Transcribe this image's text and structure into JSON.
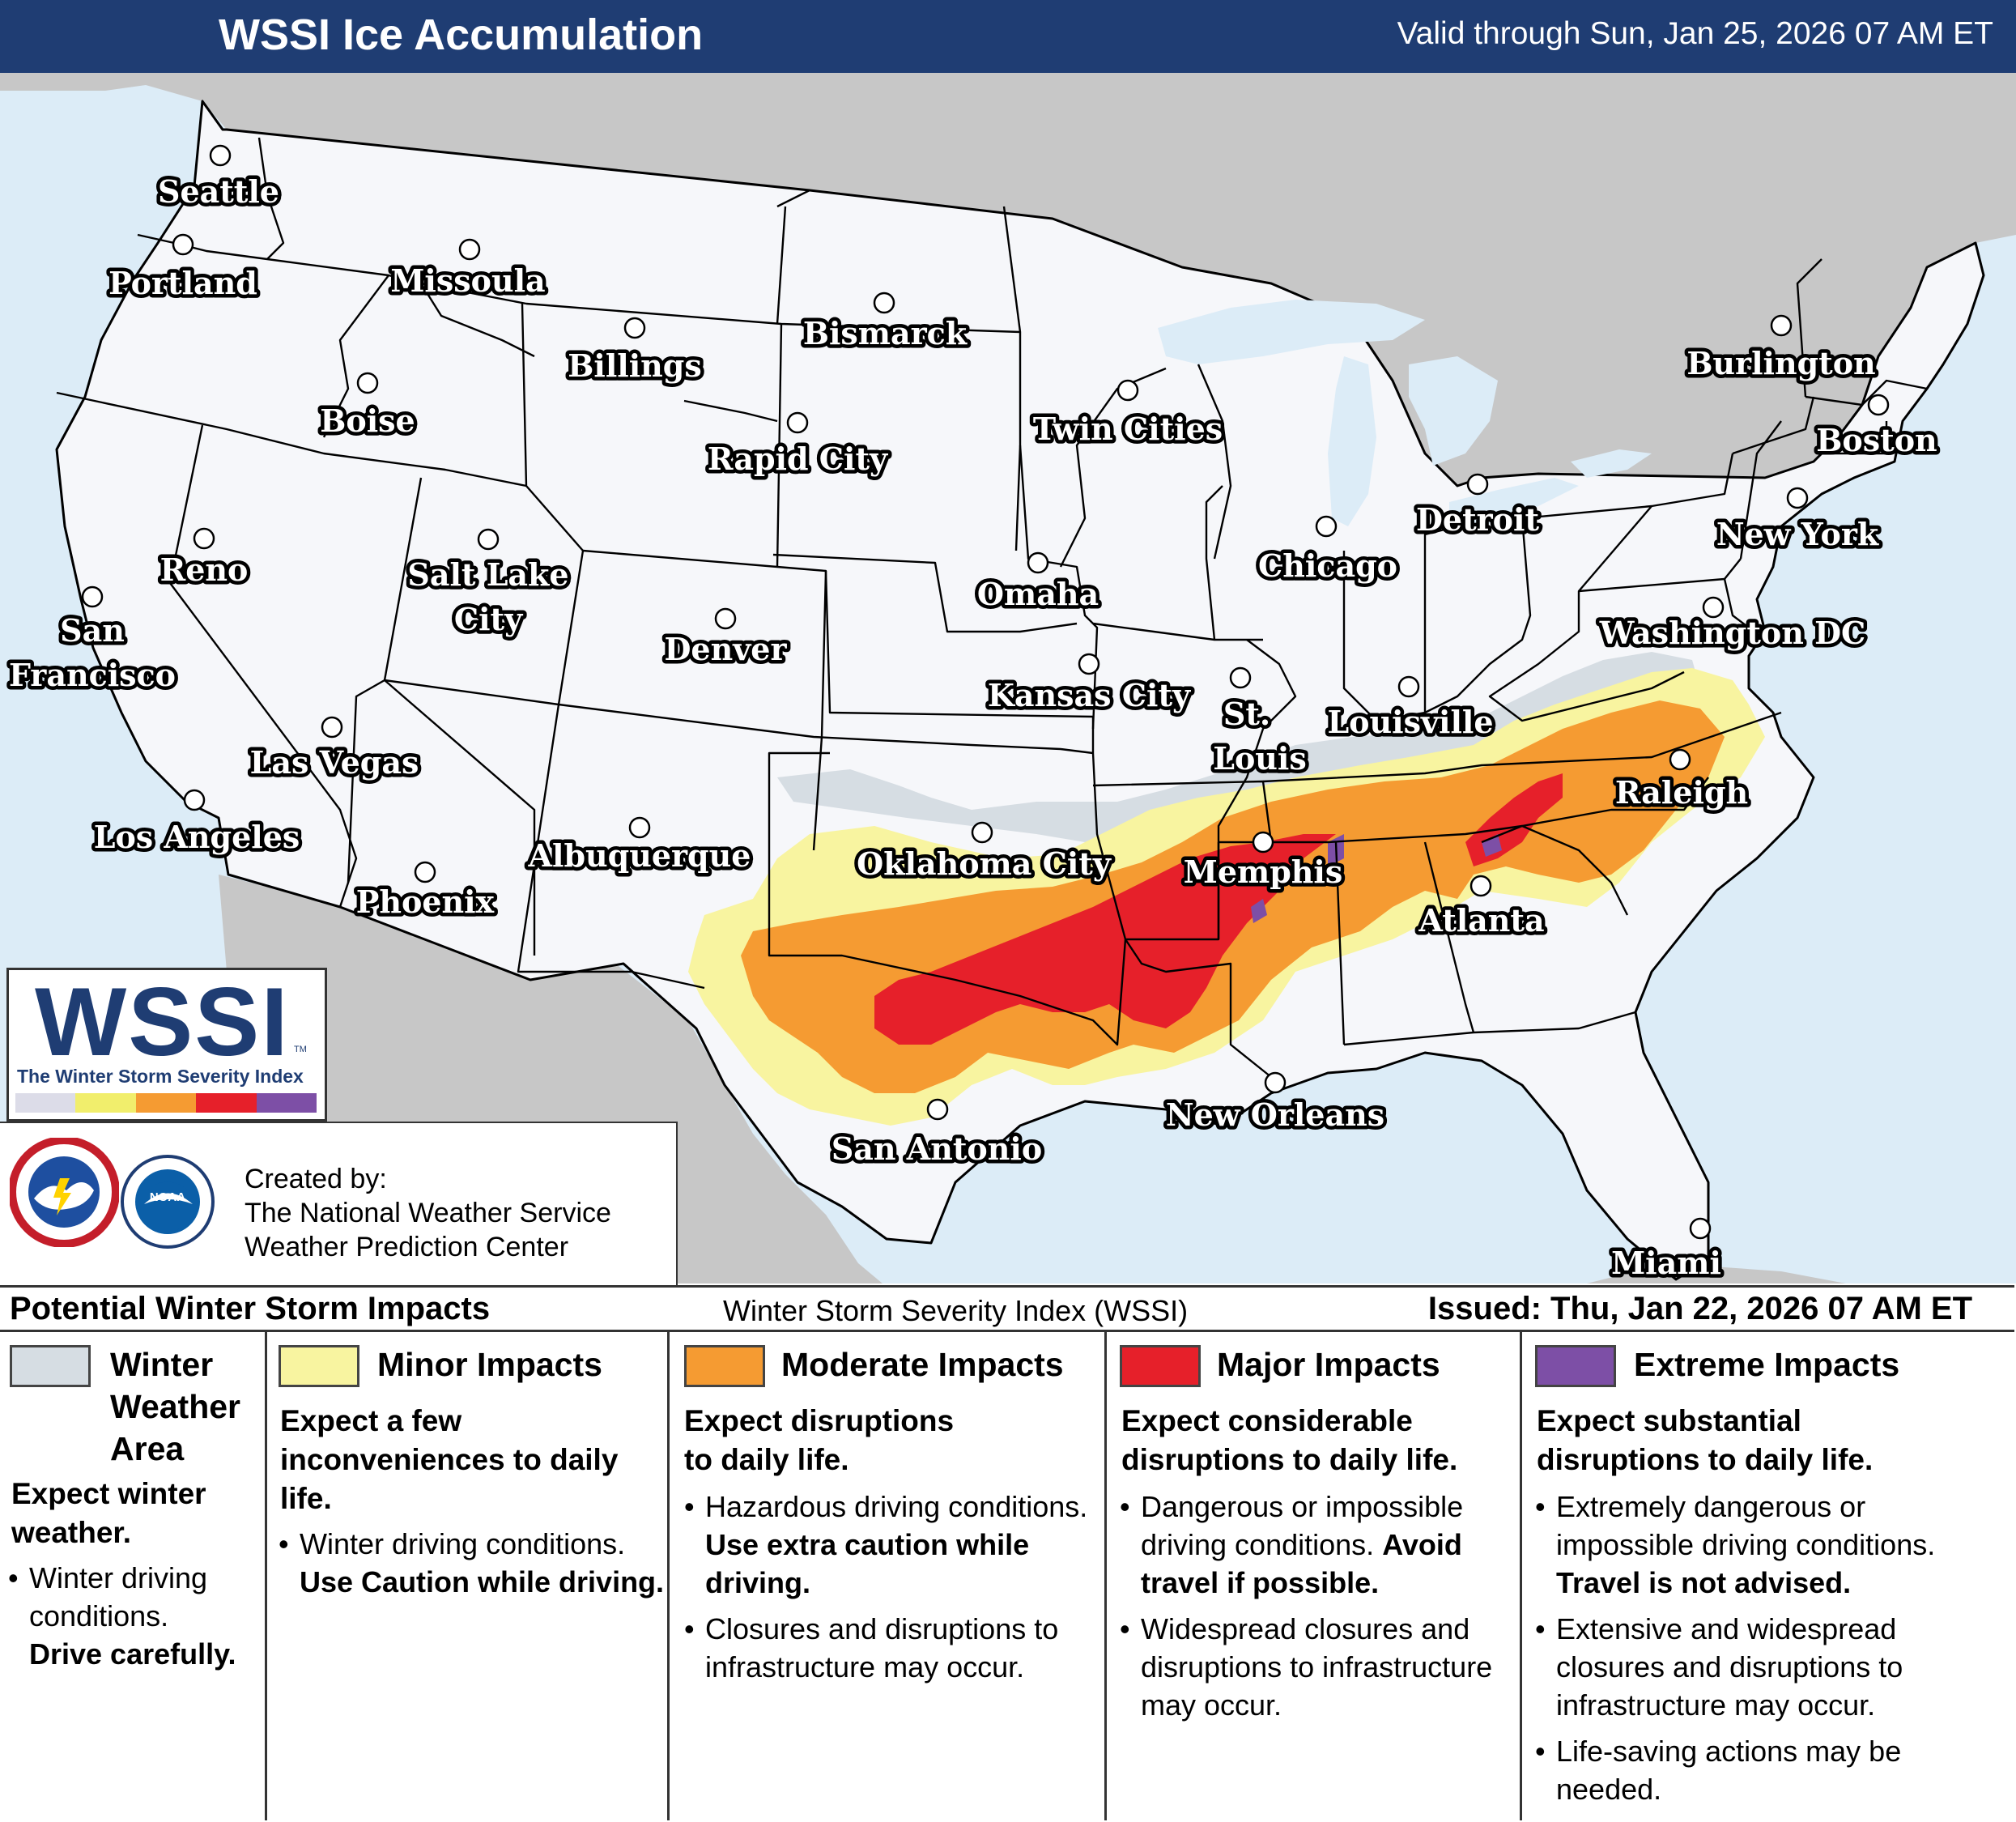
{
  "header": {
    "title": "WSSI Ice Accumulation",
    "valid": "Valid through Sun, Jan 25, 2026 07 AM ET"
  },
  "colors": {
    "header_bg": "#1f3d73",
    "water": "#dcecf7",
    "land_outside": "#c7c7c7",
    "land_conus": "#f6f7fa",
    "winter_weather_area": "#d6dde3",
    "minor": "#f8f4a0",
    "moderate": "#f59b32",
    "major": "#e6202a",
    "extreme": "#7d4fa6"
  },
  "cities": [
    {
      "name": "Seattle"
    },
    {
      "name": "Portland"
    },
    {
      "name": "Missoula"
    },
    {
      "name": "Bismarck"
    },
    {
      "name": "Billings"
    },
    {
      "name": "Boise"
    },
    {
      "name": "Twin Cities"
    },
    {
      "name": "Rapid City"
    },
    {
      "name": "Burlington"
    },
    {
      "name": "Boston"
    },
    {
      "name": "Detroit"
    },
    {
      "name": "New York"
    },
    {
      "name": "Chicago"
    },
    {
      "name": "Reno"
    },
    {
      "name": "Salt Lake City"
    },
    {
      "name": "Omaha"
    },
    {
      "name": "San Francisco"
    },
    {
      "name": "Denver"
    },
    {
      "name": "Washington DC"
    },
    {
      "name": "Kansas City"
    },
    {
      "name": "St. Louis"
    },
    {
      "name": "Louisville"
    },
    {
      "name": "Las Vegas"
    },
    {
      "name": "Raleigh"
    },
    {
      "name": "Los Angeles"
    },
    {
      "name": "Memphis"
    },
    {
      "name": "Oklahoma City"
    },
    {
      "name": "Albuquerque"
    },
    {
      "name": "Atlanta"
    },
    {
      "name": "Phoenix"
    },
    {
      "name": "New Orleans"
    },
    {
      "name": "San Antonio"
    },
    {
      "name": "Miami"
    }
  ],
  "logo": {
    "word": "WSSI",
    "tm": "TM",
    "subtitle": "The Winter Storm Severity Index"
  },
  "credits": {
    "line1": "Created by:",
    "line2": "The National Weather Service",
    "line3": "Weather Prediction Center",
    "nws_logo_icon": "nws-logo-icon",
    "noaa_logo_icon": "noaa-logo-icon"
  },
  "legend": {
    "title": "Potential Winter Storm Impacts",
    "index_name": "Winter Storm Severity Index (WSSI)",
    "issued": "Issued: Thu, Jan 22, 2026 07 AM ET",
    "categories": [
      {
        "label_lines": [
          "Winter",
          "Weather",
          "Area"
        ],
        "summary_lines": [
          "Expect winter",
          "weather."
        ],
        "bullets": [
          {
            "lines": [
              "Winter driving",
              "conditions."
            ],
            "bold_lines": [
              "Drive carefully."
            ]
          }
        ]
      },
      {
        "label": "Minor Impacts",
        "summary_lines": [
          "Expect a few",
          "inconveniences to daily",
          "life."
        ],
        "bullets": [
          {
            "text": "Winter driving conditions.",
            "bold": "Use Caution while driving."
          }
        ]
      },
      {
        "label": "Moderate Impacts",
        "summary_lines": [
          "Expect disruptions",
          "to daily life."
        ],
        "bullets": [
          {
            "text": "Hazardous driving conditions.",
            "bold": "Use extra caution while driving."
          },
          {
            "text": "Closures and disruptions to infrastructure may occur.",
            "bold": ""
          }
        ]
      },
      {
        "label": "Major Impacts",
        "summary_lines": [
          "Expect considerable",
          "disruptions to daily life."
        ],
        "bullets": [
          {
            "text": "Dangerous or impossible driving conditions.",
            "bold": "Avoid travel if possible."
          },
          {
            "text": "Widespread closures and disruptions to infrastructure may occur.",
            "bold": ""
          }
        ]
      },
      {
        "label": "Extreme Impacts",
        "summary_lines": [
          "Expect substantial",
          "disruptions to daily life."
        ],
        "bullets": [
          {
            "text": "Extremely dangerous or impossible driving conditions.",
            "bold": "Travel is not advised."
          },
          {
            "text": "Extensive and widespread closures and disruptions to infrastructure may occur.",
            "bold": ""
          },
          {
            "text": "Life-saving actions may be needed.",
            "bold": ""
          }
        ]
      }
    ]
  }
}
